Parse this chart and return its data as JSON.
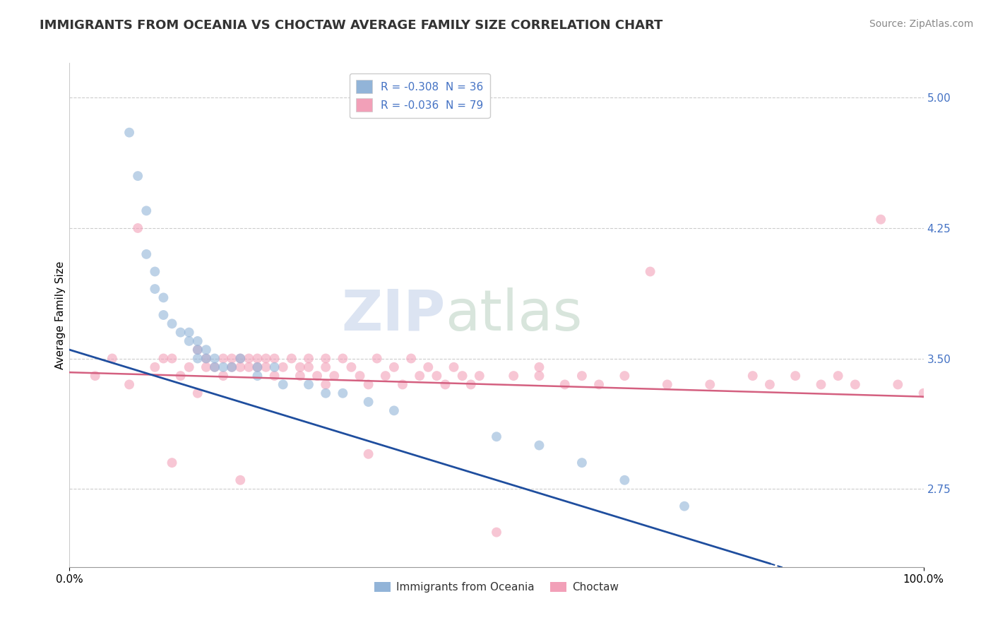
{
  "title": "IMMIGRANTS FROM OCEANIA VS CHOCTAW AVERAGE FAMILY SIZE CORRELATION CHART",
  "source_text": "Source: ZipAtlas.com",
  "ylabel": "Average Family Size",
  "watermark_zip": "ZIP",
  "watermark_atlas": "atlas",
  "legend_entries": [
    {
      "label": "R = -0.308  N = 36",
      "color": "#aac4e2"
    },
    {
      "label": "R = -0.036  N = 79",
      "color": "#f5aac0"
    }
  ],
  "legend_labels": [
    "Immigrants from Oceania",
    "Choctaw"
  ],
  "xlim": [
    0.0,
    100.0
  ],
  "ylim": [
    2.3,
    5.2
  ],
  "yticks": [
    2.75,
    3.5,
    4.25,
    5.0
  ],
  "ytick_labels": [
    "2.75",
    "3.50",
    "4.25",
    "5.00"
  ],
  "ytick_color": "#4472c4",
  "xticks": [
    0.0,
    100.0
  ],
  "xtick_labels": [
    "0.0%",
    "100.0%"
  ],
  "grid_color": "#cccccc",
  "background_color": "#ffffff",
  "blue_scatter_color": "#92b4d8",
  "pink_scatter_color": "#f2a0b8",
  "blue_line_color": "#1f4e9e",
  "pink_line_color": "#d46080",
  "scatter_alpha": 0.6,
  "scatter_size": 100,
  "blue_scatter_x": [
    7,
    8,
    9,
    9,
    10,
    10,
    11,
    11,
    12,
    13,
    14,
    14,
    15,
    15,
    15,
    16,
    16,
    17,
    17,
    18,
    19,
    20,
    22,
    22,
    24,
    25,
    28,
    30,
    32,
    35,
    38,
    50,
    55,
    60,
    65,
    72
  ],
  "blue_scatter_y": [
    4.8,
    4.55,
    4.35,
    4.1,
    4.0,
    3.9,
    3.85,
    3.75,
    3.7,
    3.65,
    3.65,
    3.6,
    3.6,
    3.55,
    3.5,
    3.55,
    3.5,
    3.5,
    3.45,
    3.45,
    3.45,
    3.5,
    3.45,
    3.4,
    3.45,
    3.35,
    3.35,
    3.3,
    3.3,
    3.25,
    3.2,
    3.05,
    3.0,
    2.9,
    2.8,
    2.65
  ],
  "pink_scatter_x": [
    3,
    5,
    7,
    8,
    10,
    11,
    12,
    13,
    14,
    15,
    16,
    16,
    17,
    18,
    18,
    19,
    19,
    20,
    20,
    21,
    21,
    22,
    22,
    23,
    23,
    24,
    24,
    25,
    26,
    27,
    27,
    28,
    28,
    29,
    30,
    30,
    31,
    32,
    33,
    34,
    35,
    36,
    37,
    38,
    39,
    40,
    41,
    42,
    43,
    44,
    45,
    46,
    47,
    48,
    50,
    52,
    55,
    58,
    60,
    62,
    65,
    68,
    70,
    75,
    80,
    82,
    85,
    88,
    90,
    92,
    95,
    97,
    100,
    55,
    35,
    15,
    30,
    12,
    20
  ],
  "pink_scatter_y": [
    3.4,
    3.5,
    3.35,
    4.25,
    3.45,
    3.5,
    3.5,
    3.4,
    3.45,
    3.55,
    3.5,
    3.45,
    3.45,
    3.5,
    3.4,
    3.5,
    3.45,
    3.5,
    3.45,
    3.5,
    3.45,
    3.45,
    3.5,
    3.45,
    3.5,
    3.5,
    3.4,
    3.45,
    3.5,
    3.45,
    3.4,
    3.45,
    3.5,
    3.4,
    3.5,
    3.45,
    3.4,
    3.5,
    3.45,
    3.4,
    3.35,
    3.5,
    3.4,
    3.45,
    3.35,
    3.5,
    3.4,
    3.45,
    3.4,
    3.35,
    3.45,
    3.4,
    3.35,
    3.4,
    2.5,
    3.4,
    3.4,
    3.35,
    3.4,
    3.35,
    3.4,
    4.0,
    3.35,
    3.35,
    3.4,
    3.35,
    3.4,
    3.35,
    3.4,
    3.35,
    4.3,
    3.35,
    3.3,
    3.45,
    2.95,
    3.3,
    3.35,
    2.9,
    2.8
  ],
  "blue_trend_x": [
    0,
    100
  ],
  "blue_trend_y_start": 3.55,
  "blue_trend_y_end": 2.05,
  "pink_trend_x": [
    0,
    100
  ],
  "pink_trend_y_start": 3.42,
  "pink_trend_y_end": 3.28,
  "title_fontsize": 13,
  "source_fontsize": 10,
  "axis_label_fontsize": 11,
  "tick_fontsize": 11,
  "watermark_fontsize_zip": 58,
  "watermark_fontsize_atlas": 58,
  "watermark_color_zip": "#c0cfe8",
  "watermark_color_atlas": "#b8d0c0",
  "watermark_alpha": 0.55
}
